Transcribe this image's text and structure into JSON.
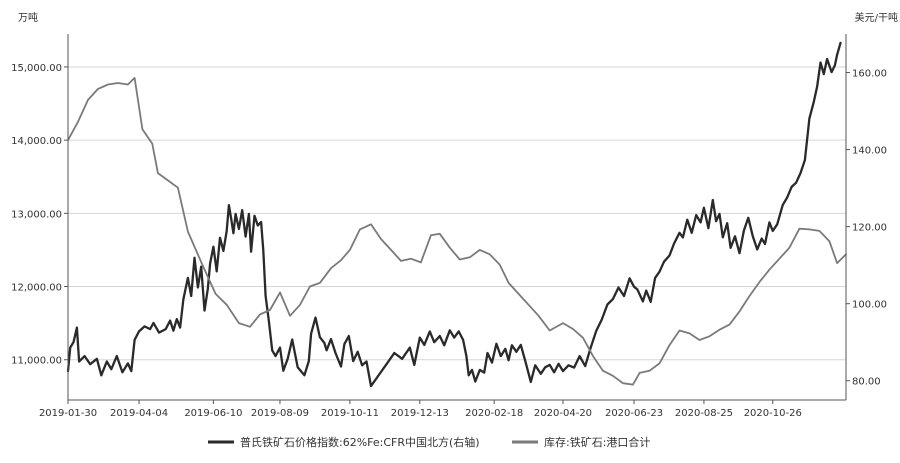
{
  "chart_data": {
    "type": "line",
    "title": "",
    "left_axis": {
      "unit": "万吨",
      "range": [
        10450,
        15450
      ],
      "ticks": [
        11000,
        12000,
        13000,
        14000,
        15000
      ],
      "tick_labels": [
        "11,000.00",
        "12,000.00",
        "13,000.00",
        "14,000.00",
        "15,000.00"
      ]
    },
    "right_axis": {
      "unit": "美元/干吨",
      "range": [
        75,
        170
      ],
      "ticks": [
        80,
        100,
        120,
        140,
        160
      ],
      "tick_labels": [
        "80.00",
        "100.00",
        "120.00",
        "140.00",
        "160.00"
      ]
    },
    "x_axis": {
      "range": [
        "2019-01-30",
        "2020-12-31"
      ],
      "tick_labels": [
        "2019-01-30",
        "2019-04-04",
        "2019-06-10",
        "2019-08-09",
        "2019-10-11",
        "2019-12-13",
        "2020-02-18",
        "2020-04-20",
        "2020-06-23",
        "2020-08-25",
        "2020-10-26"
      ]
    },
    "grid": "horizontal",
    "legend_position": "bottom",
    "series": [
      {
        "name": "普氏铁矿石价格指数:62%Fe:CFR中国北方(右轴)",
        "axis": "right",
        "color": "#2a2a2a",
        "points": [
          [
            "2019-01-30",
            82.5
          ],
          [
            "2019-02-01",
            88.6
          ],
          [
            "2019-02-04",
            90.0
          ],
          [
            "2019-02-07",
            93.8
          ],
          [
            "2019-02-09",
            85.0
          ],
          [
            "2019-02-14",
            86.4
          ],
          [
            "2019-02-19",
            84.3
          ],
          [
            "2019-02-25",
            85.7
          ],
          [
            "2019-03-01",
            81.4
          ],
          [
            "2019-03-06",
            85.0
          ],
          [
            "2019-03-10",
            83.0
          ],
          [
            "2019-03-15",
            86.4
          ],
          [
            "2019-03-20",
            82.2
          ],
          [
            "2019-03-25",
            84.5
          ],
          [
            "2019-03-28",
            82.5
          ],
          [
            "2019-03-31",
            90.6
          ],
          [
            "2019-04-04",
            92.8
          ],
          [
            "2019-04-09",
            94.1
          ],
          [
            "2019-04-14",
            93.4
          ],
          [
            "2019-04-17",
            95.0
          ],
          [
            "2019-04-22",
            92.5
          ],
          [
            "2019-04-28",
            93.4
          ],
          [
            "2019-05-02",
            95.6
          ],
          [
            "2019-05-05",
            93.0
          ],
          [
            "2019-05-08",
            96.0
          ],
          [
            "2019-05-11",
            93.8
          ],
          [
            "2019-05-14",
            101.2
          ],
          [
            "2019-05-18",
            106.7
          ],
          [
            "2019-05-21",
            102.0
          ],
          [
            "2019-05-24",
            111.9
          ],
          [
            "2019-05-27",
            104.2
          ],
          [
            "2019-05-30",
            109.6
          ],
          [
            "2019-06-02",
            98.2
          ],
          [
            "2019-06-05",
            103.8
          ],
          [
            "2019-06-07",
            110.4
          ],
          [
            "2019-06-10",
            114.8
          ],
          [
            "2019-06-13",
            108.4
          ],
          [
            "2019-06-16",
            117.1
          ],
          [
            "2019-06-19",
            113.7
          ],
          [
            "2019-06-22",
            118.9
          ],
          [
            "2019-06-24",
            125.6
          ],
          [
            "2019-06-26",
            122.2
          ],
          [
            "2019-06-28",
            118.3
          ],
          [
            "2019-06-30",
            123.3
          ],
          [
            "2019-07-03",
            119.4
          ],
          [
            "2019-07-06",
            124.3
          ],
          [
            "2019-07-09",
            117.4
          ],
          [
            "2019-07-12",
            123.3
          ],
          [
            "2019-07-14",
            113.5
          ],
          [
            "2019-07-17",
            122.8
          ],
          [
            "2019-07-20",
            120.3
          ],
          [
            "2019-07-23",
            121.2
          ],
          [
            "2019-07-25",
            113.8
          ],
          [
            "2019-07-27",
            102.0
          ],
          [
            "2019-07-30",
            95.4
          ],
          [
            "2019-08-02",
            87.9
          ],
          [
            "2019-08-05",
            86.4
          ],
          [
            "2019-08-09",
            88.6
          ],
          [
            "2019-08-12",
            82.6
          ],
          [
            "2019-08-16",
            85.7
          ],
          [
            "2019-08-20",
            90.7
          ],
          [
            "2019-08-25",
            83.5
          ],
          [
            "2019-08-31",
            81.4
          ],
          [
            "2019-09-04",
            85.1
          ],
          [
            "2019-09-06",
            92.2
          ],
          [
            "2019-09-10",
            96.4
          ],
          [
            "2019-09-14",
            91.3
          ],
          [
            "2019-09-18",
            89.8
          ],
          [
            "2019-09-20",
            87.9
          ],
          [
            "2019-09-24",
            90.8
          ],
          [
            "2019-09-28",
            87.2
          ],
          [
            "2019-10-03",
            83.7
          ],
          [
            "2019-10-06",
            89.5
          ],
          [
            "2019-10-10",
            91.6
          ],
          [
            "2019-10-14",
            85.1
          ],
          [
            "2019-10-18",
            87.5
          ],
          [
            "2019-10-22",
            84.0
          ],
          [
            "2019-10-26",
            85.0
          ],
          [
            "2019-10-30",
            78.6
          ],
          [
            "2019-11-06",
            81.5
          ],
          [
            "2019-11-13",
            84.3
          ],
          [
            "2019-11-20",
            87.2
          ],
          [
            "2019-11-27",
            85.7
          ],
          [
            "2019-12-04",
            88.6
          ],
          [
            "2019-12-08",
            84.1
          ],
          [
            "2019-12-13",
            91.2
          ],
          [
            "2019-12-17",
            89.3
          ],
          [
            "2019-12-22",
            92.8
          ],
          [
            "2019-12-26",
            90.0
          ],
          [
            "2019-12-31",
            91.6
          ],
          [
            "2020-01-04",
            89.2
          ],
          [
            "2020-01-09",
            93.1
          ],
          [
            "2020-01-13",
            91.2
          ],
          [
            "2020-01-17",
            92.8
          ],
          [
            "2020-01-21",
            90.6
          ],
          [
            "2020-01-24",
            86.4
          ],
          [
            "2020-01-26",
            81.4
          ],
          [
            "2020-01-29",
            82.8
          ],
          [
            "2020-02-01",
            79.8
          ],
          [
            "2020-02-05",
            82.8
          ],
          [
            "2020-02-09",
            82.1
          ],
          [
            "2020-02-12",
            87.2
          ],
          [
            "2020-02-16",
            84.7
          ],
          [
            "2020-02-20",
            89.6
          ],
          [
            "2020-02-24",
            86.4
          ],
          [
            "2020-02-28",
            88.3
          ],
          [
            "2020-03-02",
            85.3
          ],
          [
            "2020-03-05",
            89.2
          ],
          [
            "2020-03-09",
            87.5
          ],
          [
            "2020-03-13",
            89.3
          ],
          [
            "2020-03-17",
            85.1
          ],
          [
            "2020-03-22",
            79.7
          ],
          [
            "2020-03-26",
            84.0
          ],
          [
            "2020-03-31",
            81.8
          ],
          [
            "2020-04-04",
            83.5
          ],
          [
            "2020-04-08",
            84.1
          ],
          [
            "2020-04-12",
            82.2
          ],
          [
            "2020-04-16",
            84.4
          ],
          [
            "2020-04-20",
            82.5
          ],
          [
            "2020-04-25",
            84.0
          ],
          [
            "2020-04-30",
            83.4
          ],
          [
            "2020-05-05",
            86.4
          ],
          [
            "2020-05-10",
            83.8
          ],
          [
            "2020-05-15",
            88.6
          ],
          [
            "2020-05-20",
            93.0
          ],
          [
            "2020-05-25",
            95.9
          ],
          [
            "2020-05-30",
            99.8
          ],
          [
            "2020-06-04",
            101.2
          ],
          [
            "2020-06-09",
            104.2
          ],
          [
            "2020-06-14",
            102.0
          ],
          [
            "2020-06-19",
            106.6
          ],
          [
            "2020-06-23",
            104.4
          ],
          [
            "2020-06-26",
            103.7
          ],
          [
            "2020-07-01",
            100.6
          ],
          [
            "2020-07-04",
            103.4
          ],
          [
            "2020-07-08",
            100.5
          ],
          [
            "2020-07-12",
            106.7
          ],
          [
            "2020-07-16",
            108.3
          ],
          [
            "2020-07-20",
            110.9
          ],
          [
            "2020-07-25",
            112.5
          ],
          [
            "2020-07-29",
            115.6
          ],
          [
            "2020-08-03",
            118.4
          ],
          [
            "2020-08-06",
            117.2
          ],
          [
            "2020-08-10",
            121.8
          ],
          [
            "2020-08-14",
            118.4
          ],
          [
            "2020-08-18",
            123.0
          ],
          [
            "2020-08-22",
            121.1
          ],
          [
            "2020-08-25",
            124.9
          ],
          [
            "2020-08-29",
            119.6
          ],
          [
            "2020-09-02",
            126.9
          ],
          [
            "2020-09-05",
            121.4
          ],
          [
            "2020-09-08",
            123.3
          ],
          [
            "2020-09-11",
            117.2
          ],
          [
            "2020-09-15",
            120.9
          ],
          [
            "2020-09-18",
            114.5
          ],
          [
            "2020-09-22",
            117.5
          ],
          [
            "2020-09-26",
            113.1
          ],
          [
            "2020-09-30",
            119.0
          ],
          [
            "2020-10-04",
            122.3
          ],
          [
            "2020-10-08",
            117.5
          ],
          [
            "2020-10-12",
            114.1
          ],
          [
            "2020-10-16",
            116.9
          ],
          [
            "2020-10-19",
            115.5
          ],
          [
            "2020-10-23",
            121.1
          ],
          [
            "2020-10-26",
            118.9
          ],
          [
            "2020-10-30",
            120.6
          ],
          [
            "2020-11-04",
            125.6
          ],
          [
            "2020-11-08",
            127.6
          ],
          [
            "2020-11-12",
            130.3
          ],
          [
            "2020-11-16",
            131.4
          ],
          [
            "2020-11-20",
            133.9
          ],
          [
            "2020-11-24",
            137.3
          ],
          [
            "2020-11-28",
            148.1
          ],
          [
            "2020-12-02",
            152.4
          ],
          [
            "2020-12-05",
            156.3
          ],
          [
            "2020-12-08",
            162.6
          ],
          [
            "2020-12-11",
            159.6
          ],
          [
            "2020-12-14",
            163.5
          ],
          [
            "2020-12-18",
            160.1
          ],
          [
            "2020-12-21",
            161.9
          ],
          [
            "2020-12-23",
            164.6
          ],
          [
            "2020-12-26",
            167.7
          ]
        ]
      },
      {
        "name": "库存:铁矿石:港口合计",
        "axis": "left",
        "color": "#7a7a7a",
        "points": [
          [
            "2019-01-30",
            14000
          ],
          [
            "2019-02-08",
            14250
          ],
          [
            "2019-02-17",
            14550
          ],
          [
            "2019-02-26",
            14700
          ],
          [
            "2019-03-07",
            14760
          ],
          [
            "2019-03-16",
            14780
          ],
          [
            "2019-03-25",
            14760
          ],
          [
            "2019-03-31",
            14850
          ],
          [
            "2019-04-07",
            14150
          ],
          [
            "2019-04-16",
            13950
          ],
          [
            "2019-04-21",
            13550
          ],
          [
            "2019-04-30",
            13450
          ],
          [
            "2019-05-09",
            13350
          ],
          [
            "2019-05-18",
            12750
          ],
          [
            "2019-05-31",
            12300
          ],
          [
            "2019-06-12",
            11900
          ],
          [
            "2019-06-22",
            11750
          ],
          [
            "2019-07-03",
            11500
          ],
          [
            "2019-07-13",
            11450
          ],
          [
            "2019-07-22",
            11620
          ],
          [
            "2019-07-31",
            11680
          ],
          [
            "2019-08-09",
            11920
          ],
          [
            "2019-08-18",
            11600
          ],
          [
            "2019-08-27",
            11750
          ],
          [
            "2019-09-05",
            12000
          ],
          [
            "2019-09-14",
            12050
          ],
          [
            "2019-09-24",
            12250
          ],
          [
            "2019-10-03",
            12360
          ],
          [
            "2019-10-11",
            12500
          ],
          [
            "2019-10-20",
            12780
          ],
          [
            "2019-10-30",
            12850
          ],
          [
            "2019-11-08",
            12650
          ],
          [
            "2019-11-17",
            12500
          ],
          [
            "2019-11-26",
            12350
          ],
          [
            "2019-12-05",
            12380
          ],
          [
            "2019-12-14",
            12330
          ],
          [
            "2019-12-23",
            12700
          ],
          [
            "2019-12-31",
            12720
          ],
          [
            "2020-01-09",
            12530
          ],
          [
            "2020-01-18",
            12370
          ],
          [
            "2020-01-27",
            12400
          ],
          [
            "2020-02-05",
            12500
          ],
          [
            "2020-02-14",
            12440
          ],
          [
            "2020-02-23",
            12300
          ],
          [
            "2020-03-02",
            12050
          ],
          [
            "2020-03-11",
            11900
          ],
          [
            "2020-03-20",
            11750
          ],
          [
            "2020-03-29",
            11600
          ],
          [
            "2020-04-08",
            11400
          ],
          [
            "2020-04-20",
            11500
          ],
          [
            "2020-04-29",
            11420
          ],
          [
            "2020-05-08",
            11300
          ],
          [
            "2020-05-17",
            11050
          ],
          [
            "2020-05-26",
            10850
          ],
          [
            "2020-06-04",
            10780
          ],
          [
            "2020-06-13",
            10680
          ],
          [
            "2020-06-22",
            10660
          ],
          [
            "2020-06-28",
            10820
          ],
          [
            "2020-07-07",
            10850
          ],
          [
            "2020-07-16",
            10950
          ],
          [
            "2020-07-25",
            11200
          ],
          [
            "2020-08-03",
            11400
          ],
          [
            "2020-08-12",
            11360
          ],
          [
            "2020-08-21",
            11270
          ],
          [
            "2020-08-30",
            11320
          ],
          [
            "2020-09-08",
            11410
          ],
          [
            "2020-09-17",
            11480
          ],
          [
            "2020-09-26",
            11660
          ],
          [
            "2020-10-05",
            11870
          ],
          [
            "2020-10-14",
            12060
          ],
          [
            "2020-10-23",
            12230
          ],
          [
            "2020-11-01",
            12380
          ],
          [
            "2020-11-10",
            12530
          ],
          [
            "2020-11-19",
            12790
          ],
          [
            "2020-11-28",
            12780
          ],
          [
            "2020-12-07",
            12760
          ],
          [
            "2020-12-16",
            12620
          ],
          [
            "2020-12-23",
            12320
          ],
          [
            "2020-12-31",
            12440
          ]
        ]
      }
    ]
  }
}
